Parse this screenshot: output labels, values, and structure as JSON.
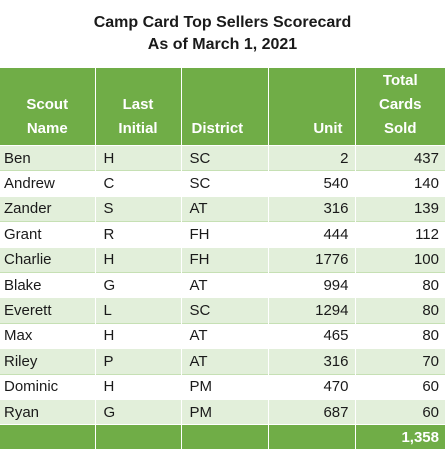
{
  "title": {
    "line1": "Camp Card Top Sellers Scorecard",
    "line2": "As of March 1, 2021"
  },
  "headers": {
    "scout_name": [
      "Scout",
      "Name"
    ],
    "last_initial": [
      "Last",
      "Initial"
    ],
    "district": "District",
    "unit": "Unit",
    "total_cards_sold": [
      "Total",
      "Cards",
      "Sold"
    ]
  },
  "rows": [
    {
      "name": "Ben",
      "initial": "H",
      "district": "SC",
      "unit": "2",
      "cards": "437"
    },
    {
      "name": "Andrew",
      "initial": "C",
      "district": "SC",
      "unit": "540",
      "cards": "140"
    },
    {
      "name": "Zander",
      "initial": "S",
      "district": "AT",
      "unit": "316",
      "cards": "139"
    },
    {
      "name": "Grant",
      "initial": "R",
      "district": "FH",
      "unit": "444",
      "cards": "112"
    },
    {
      "name": "Charlie",
      "initial": "H",
      "district": "FH",
      "unit": "1776",
      "cards": "100"
    },
    {
      "name": "Blake",
      "initial": "G",
      "district": "AT",
      "unit": "994",
      "cards": "80"
    },
    {
      "name": "Everett",
      "initial": "L",
      "district": "SC",
      "unit": "1294",
      "cards": "80"
    },
    {
      "name": "Max",
      "initial": "H",
      "district": "AT",
      "unit": "465",
      "cards": "80"
    },
    {
      "name": "Riley",
      "initial": "P",
      "district": "AT",
      "unit": "316",
      "cards": "70"
    },
    {
      "name": "Dominic",
      "initial": "H",
      "district": "PM",
      "unit": "470",
      "cards": "60"
    },
    {
      "name": "Ryan",
      "initial": "G",
      "district": "PM",
      "unit": "687",
      "cards": "60"
    }
  ],
  "total": "1,358",
  "colors": {
    "header_green": "#70ad47",
    "band_light_green": "#e2efda"
  }
}
